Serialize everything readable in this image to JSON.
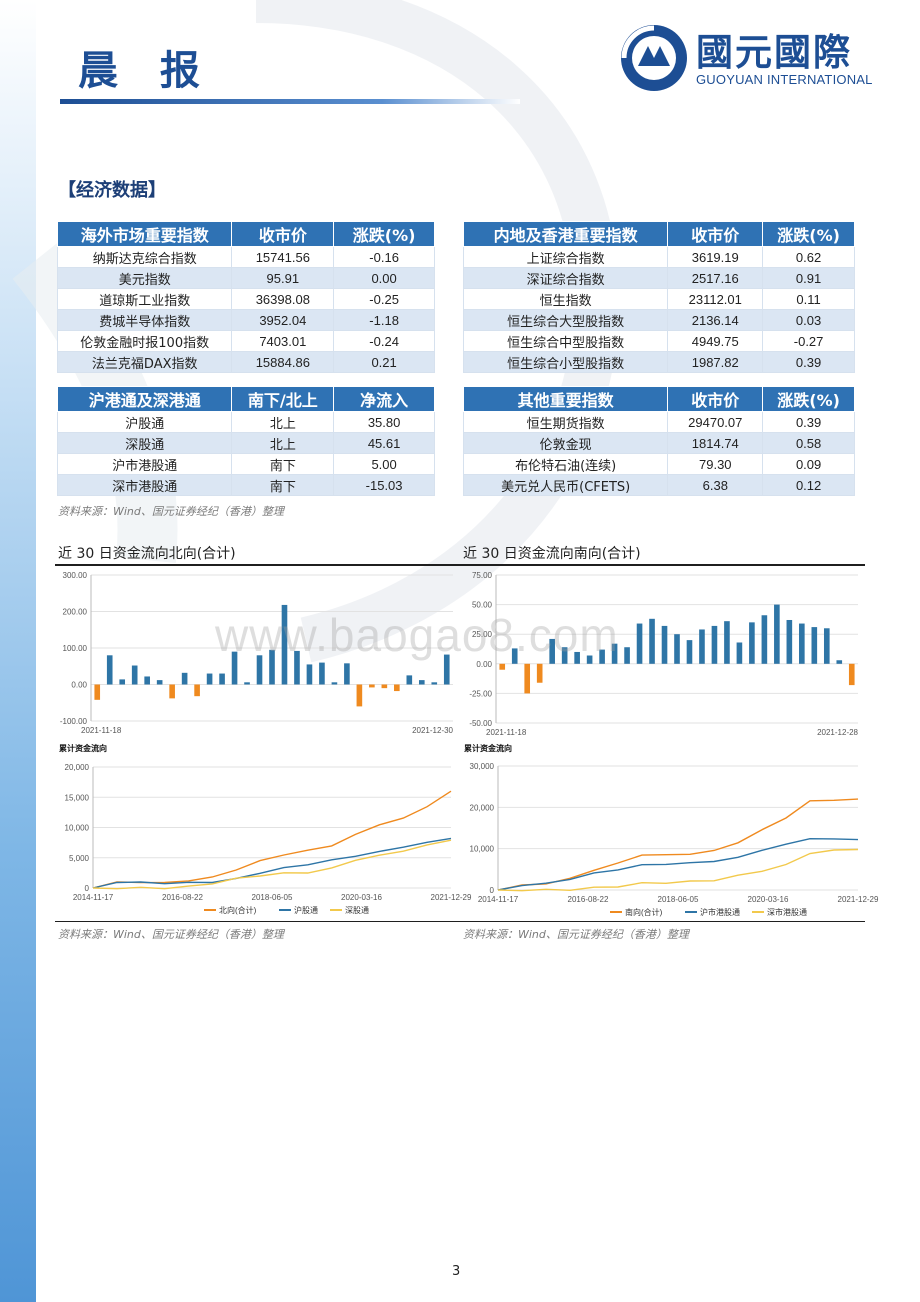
{
  "header": {
    "title": "晨 报",
    "logo_cn": "國元國際",
    "logo_en": "GUOYUAN INTERNATIONAL"
  },
  "section_title": "【经济数据】",
  "tables": {
    "overseas": {
      "headers": [
        "海外市场重要指数",
        "收市价",
        "涨跌(%)"
      ],
      "rows": [
        [
          "纳斯达克综合指数",
          "15741.56",
          "-0.16"
        ],
        [
          "美元指数",
          "95.91",
          "0.00"
        ],
        [
          "道琼斯工业指数",
          "36398.08",
          "-0.25"
        ],
        [
          "费城半导体指数",
          "3952.04",
          "-1.18"
        ],
        [
          "伦敦金融时报100指数",
          "7403.01",
          "-0.24"
        ],
        [
          "法兰克福DAX指数",
          "15884.86",
          "0.21"
        ]
      ]
    },
    "mainland_hk": {
      "headers": [
        "内地及香港重要指数",
        "收市价",
        "涨跌(%)"
      ],
      "rows": [
        [
          "上证综合指数",
          "3619.19",
          "0.62"
        ],
        [
          "深证综合指数",
          "2517.16",
          "0.91"
        ],
        [
          "恒生指数",
          "23112.01",
          "0.11"
        ],
        [
          "恒生综合大型股指数",
          "2136.14",
          "0.03"
        ],
        [
          "恒生综合中型股指数",
          "4949.75",
          "-0.27"
        ],
        [
          "恒生综合小型股指数",
          "1987.82",
          "0.39"
        ]
      ]
    },
    "connect": {
      "headers": [
        "沪港通及深港通",
        "南下/北上",
        "净流入"
      ],
      "rows": [
        [
          "沪股通",
          "北上",
          "35.80"
        ],
        [
          "深股通",
          "北上",
          "45.61"
        ],
        [
          "沪市港股通",
          "南下",
          "5.00"
        ],
        [
          "深市港股通",
          "南下",
          "-15.03"
        ]
      ]
    },
    "other": {
      "headers": [
        "其他重要指数",
        "收市价",
        "涨跌(%)"
      ],
      "rows": [
        [
          "恒生期货指数",
          "29470.07",
          "0.39"
        ],
        [
          "伦敦金现",
          "1814.74",
          "0.58"
        ],
        [
          "布伦特石油(连续)",
          "79.30",
          "0.09"
        ],
        [
          "美元兑人民币(CFETS)",
          "6.38",
          "0.12"
        ]
      ]
    }
  },
  "source_text": "资料来源：Wind、国元证券经纪（香港）整理",
  "chart_titles": {
    "north": "近 30 日资金流向北向(合计)",
    "south": "近 30 日资金流向南向(合计)"
  },
  "watermark": "www.baogao8.com",
  "page_number": "3",
  "colors": {
    "brand_blue": "#1d4e94",
    "header_blue": "#2f72b4",
    "bar_pos": "#2e75a6",
    "bar_neg": "#ef8a1f",
    "line_orange": "#ef8a1f",
    "line_blue": "#2e75a6",
    "line_yellow": "#f2c94c"
  },
  "chart_data": [
    {
      "type": "bar",
      "name": "north_daily",
      "x_start_label": "2021-11-18",
      "x_end_label": "2021-12-30",
      "yticks": [
        "300.00",
        "200.00",
        "100.00",
        "0.00",
        "-100.00"
      ],
      "ylim": [
        -100,
        300
      ],
      "values": [
        -42,
        80,
        14,
        52,
        22,
        12,
        -38,
        32,
        -32,
        30,
        30,
        90,
        6,
        80,
        95,
        218,
        92,
        55,
        60,
        6,
        58,
        -60,
        -8,
        -10,
        -18,
        25,
        12,
        6,
        82
      ]
    },
    {
      "type": "bar",
      "name": "south_daily",
      "x_start_label": "2021-11-18",
      "x_end_label": "2021-12-28",
      "yticks": [
        "75.00",
        "50.00",
        "25.00",
        "0.00",
        "-25.00",
        "-50.00"
      ],
      "ylim": [
        -50,
        75
      ],
      "values": [
        -5,
        13,
        -25,
        -16,
        21,
        14,
        10,
        7,
        12,
        17,
        14,
        34,
        38,
        32,
        25,
        20,
        29,
        32,
        36,
        18,
        35,
        41,
        50,
        37,
        34,
        31,
        30,
        3,
        -18
      ]
    },
    {
      "type": "line",
      "name": "north_cumulative",
      "title": "累计资金流向",
      "x_ticks": [
        "2014-11-17",
        "2016-08-22",
        "2018-06-05",
        "2020-03-16",
        "2021-12-29"
      ],
      "yticks": [
        "20,000",
        "15,000",
        "10,000",
        "5,000",
        "0"
      ],
      "ylim": [
        0,
        20000
      ],
      "series": [
        {
          "name": "北向(合计)",
          "values": [
            0,
            1000,
            900,
            900,
            1200,
            1800,
            3000,
            4500,
            5500,
            6200,
            7000,
            8800,
            10500,
            11500,
            13500,
            16000
          ]
        },
        {
          "name": "沪股通",
          "values": [
            0,
            1000,
            900,
            800,
            850,
            1000,
            1500,
            2500,
            3300,
            3900,
            4600,
            5300,
            6000,
            6800,
            7500,
            8200
          ]
        },
        {
          "name": "深股通",
          "values": [
            0,
            0,
            0,
            0,
            200,
            800,
            1500,
            2100,
            2400,
            2600,
            3200,
            4700,
            5300,
            6200,
            7000,
            7900
          ]
        }
      ]
    },
    {
      "type": "line",
      "name": "south_cumulative",
      "title": "累计资金流向",
      "x_ticks": [
        "2014-11-17",
        "2016-08-22",
        "2018-06-05",
        "2020-03-16",
        "2021-12-29"
      ],
      "yticks": [
        "30,000",
        "20,000",
        "10,000",
        "0"
      ],
      "ylim": [
        0,
        30000
      ],
      "series": [
        {
          "name": "南向(合计)",
          "values": [
            0,
            1200,
            1500,
            2800,
            4800,
            6500,
            8500,
            8500,
            8700,
            9500,
            11500,
            14500,
            17500,
            21500,
            21800,
            22000
          ]
        },
        {
          "name": "沪市港股通",
          "values": [
            0,
            1200,
            1500,
            2700,
            4000,
            5000,
            6000,
            6300,
            6500,
            7000,
            7800,
            9700,
            11000,
            12500,
            12300,
            12200
          ]
        },
        {
          "name": "深市港股通",
          "values": [
            0,
            0,
            0,
            100,
            500,
            900,
            1600,
            1800,
            2000,
            2400,
            3400,
            4700,
            6000,
            9000,
            9500,
            9800
          ]
        }
      ]
    }
  ]
}
